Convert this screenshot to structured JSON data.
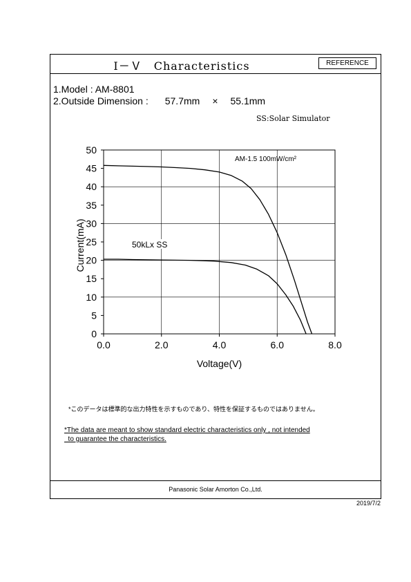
{
  "header": {
    "title": "Ⅰ－Ｖ　Characteristics",
    "reference_label": "REFERENCE"
  },
  "specs": {
    "model_label": "1.Model : AM-8801",
    "dimension_label": "2.Outside Dimension :",
    "dimension_w": "57.7mm",
    "dimension_x": "×",
    "dimension_h": "55.1mm",
    "ss_note": "SS:Solar Simulator"
  },
  "chart_data": {
    "type": "line",
    "xlabel": "Voltage(V)",
    "ylabel": "Current(mA)",
    "xlim": [
      0,
      8
    ],
    "ylim": [
      0,
      50
    ],
    "xticks": [
      "0.0",
      "2.0",
      "4.0",
      "6.0",
      "8.0"
    ],
    "yticks": [
      "0",
      "5",
      "10",
      "15",
      "20",
      "25",
      "30",
      "35",
      "40",
      "45",
      "50"
    ],
    "grid": true,
    "series": [
      {
        "name": "AM-1.5 100mW/cm²",
        "x": [
          0,
          0.5,
          1.0,
          1.5,
          2.0,
          2.5,
          3.0,
          3.5,
          4.0,
          4.4,
          4.8,
          5.1,
          5.4,
          5.7,
          6.0,
          6.3,
          6.6,
          6.9,
          7.05,
          7.2
        ],
        "values": [
          45.8,
          45.7,
          45.6,
          45.5,
          45.4,
          45.2,
          45.0,
          44.6,
          44.0,
          43.1,
          41.5,
          39.5,
          36.5,
          32.5,
          27.5,
          21.5,
          14.5,
          7.0,
          3.2,
          0
        ]
      },
      {
        "name": "50kLx SS",
        "x": [
          0,
          0.5,
          1.0,
          2.0,
          3.0,
          3.8,
          4.4,
          4.9,
          5.3,
          5.7,
          6.0,
          6.3,
          6.55,
          6.8,
          7.0
        ],
        "values": [
          20.3,
          20.3,
          20.2,
          20.1,
          20.0,
          19.8,
          19.4,
          18.7,
          17.6,
          15.8,
          13.6,
          10.6,
          7.6,
          3.8,
          0
        ]
      }
    ]
  },
  "notes": {
    "jp": "*このデータは標準的な出力特性を示すものであり、特性を保証するものではありません。",
    "en_line1": "*The data are meant to show standard electric characteristics only , not  intended",
    "en_line2": "  to guarantee the characteristics."
  },
  "footer": {
    "company": "Panasonic Solar Amorton Co.,Ltd.",
    "date": "2019/7/2"
  }
}
